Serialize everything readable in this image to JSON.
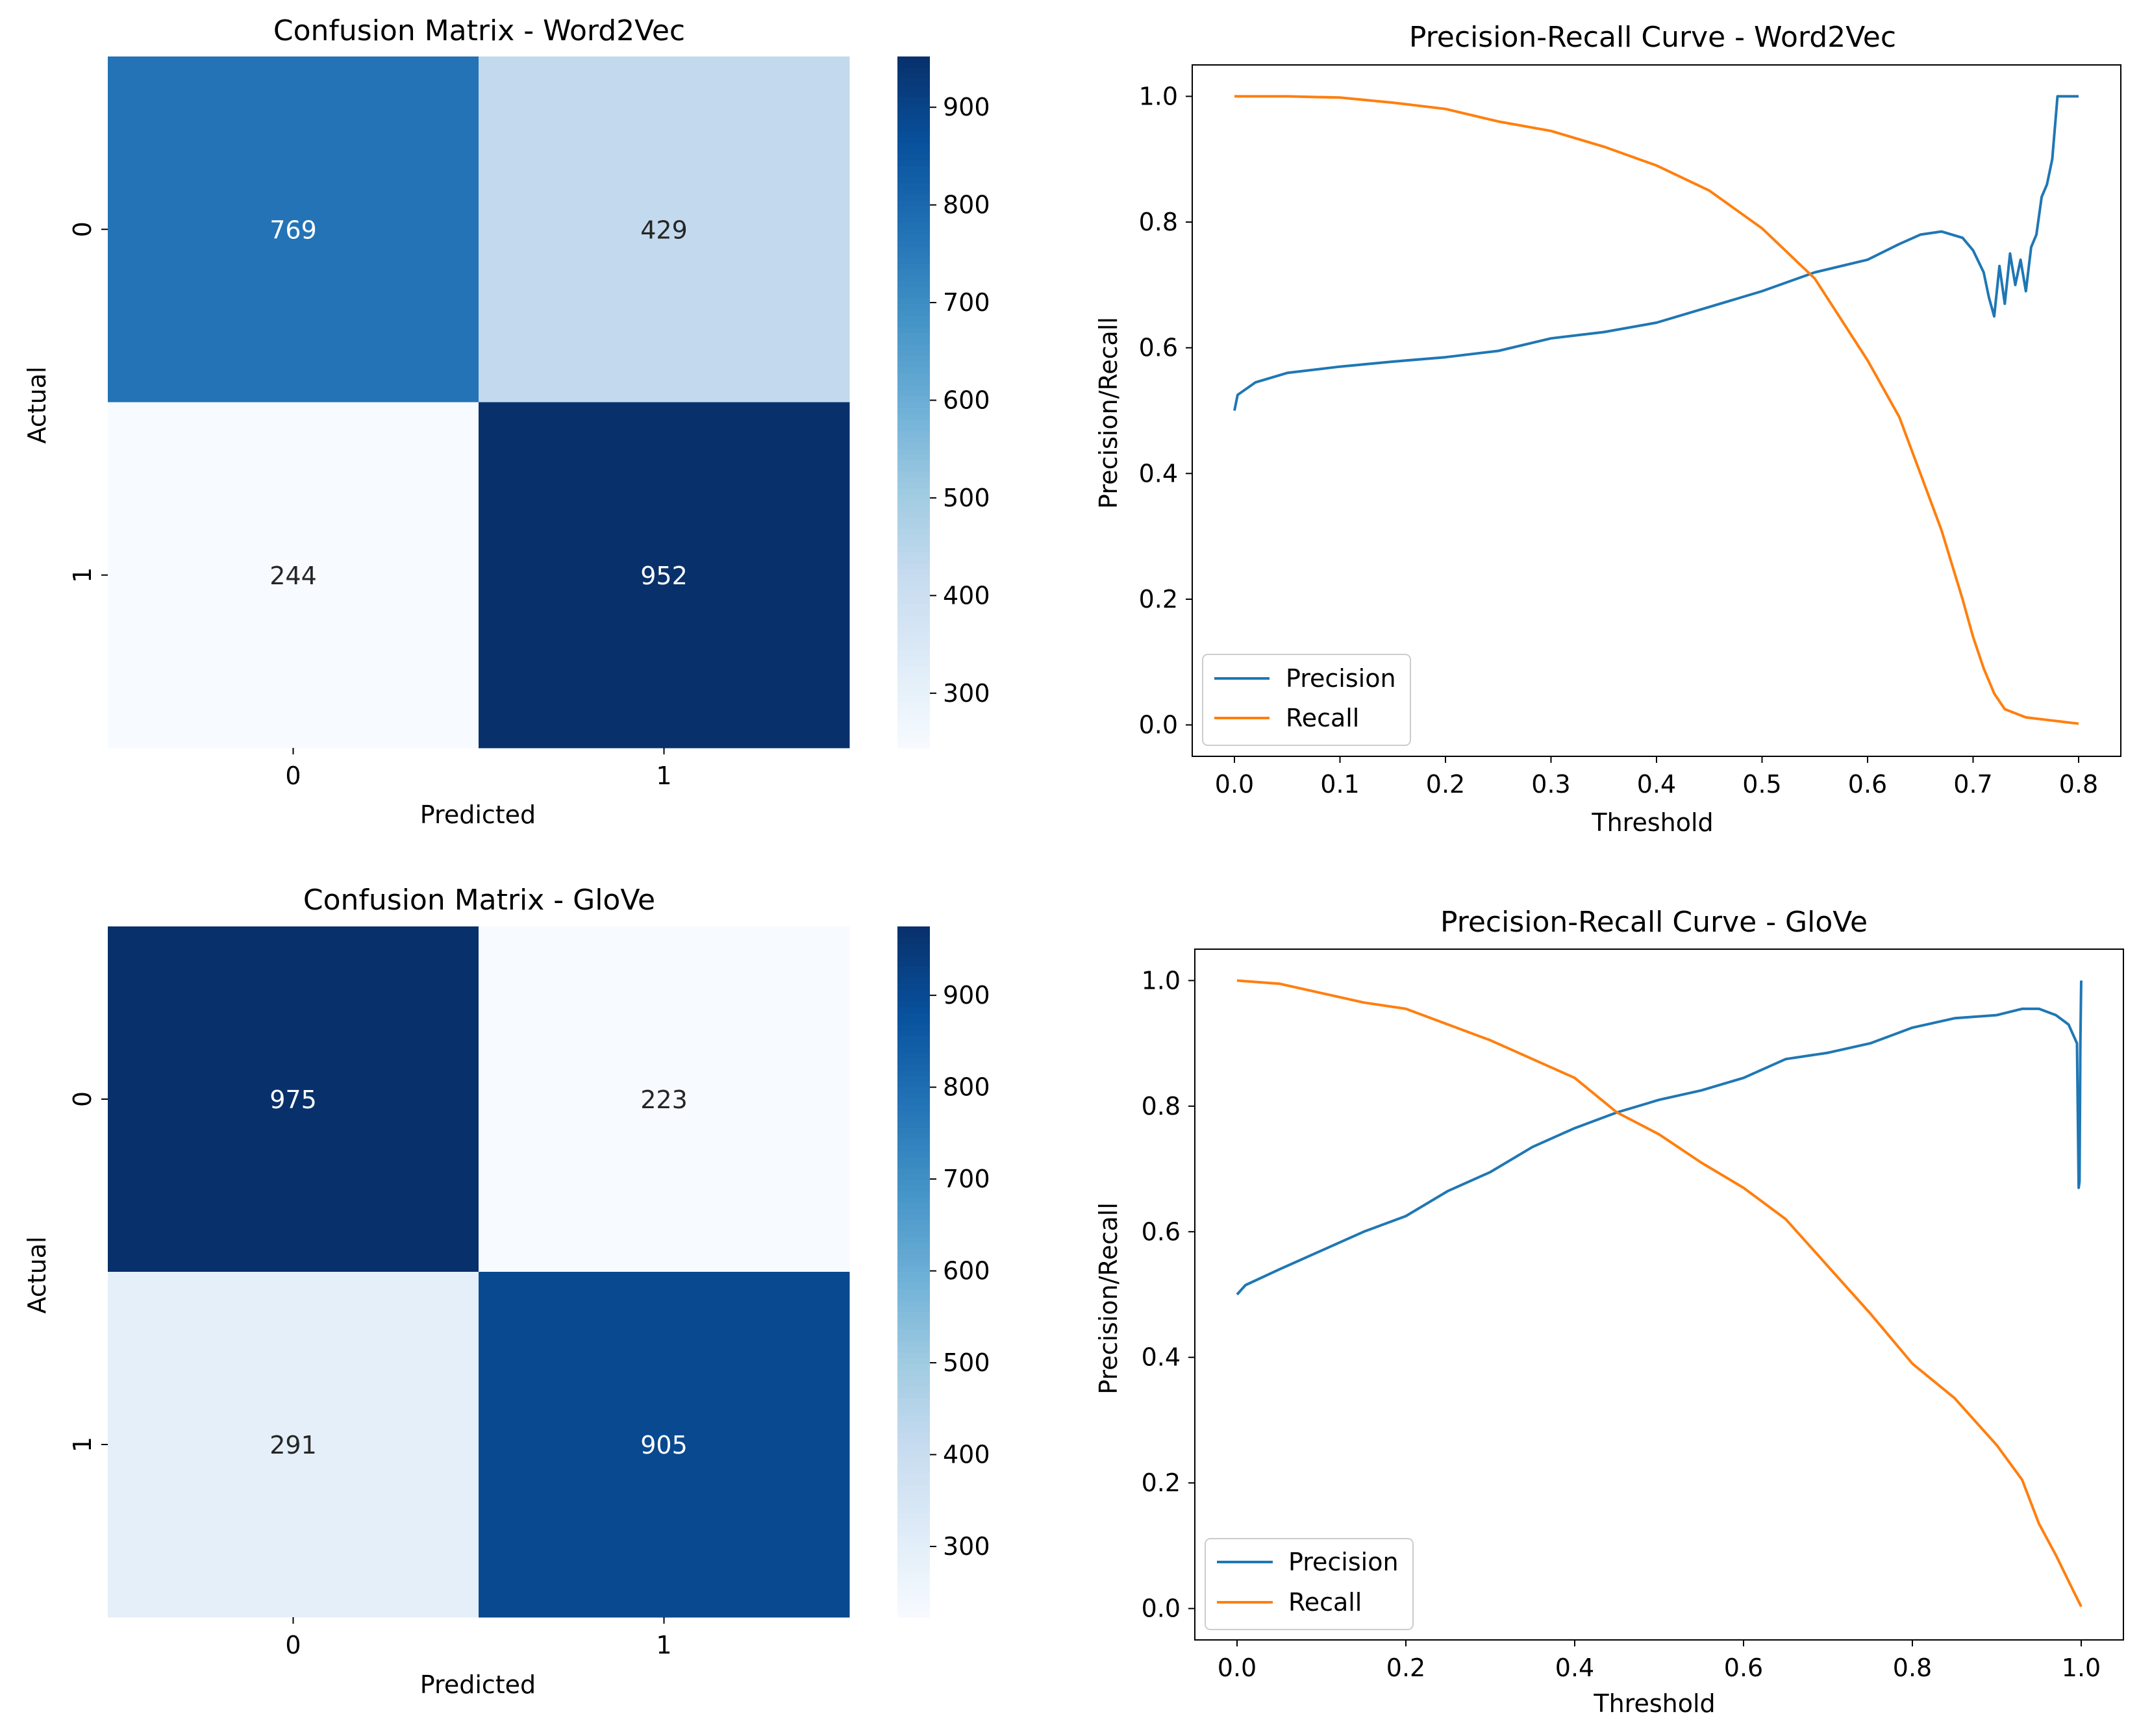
{
  "chart_data": [
    {
      "type": "heatmap",
      "title": "Confusion Matrix - Word2Vec",
      "xlabel": "Predicted",
      "ylabel": "Actual",
      "x_categories": [
        "0",
        "1"
      ],
      "y_categories": [
        "0",
        "1"
      ],
      "cells": [
        [
          769,
          429
        ],
        [
          244,
          952
        ]
      ],
      "colorbar": {
        "ticks": [
          300,
          400,
          500,
          600,
          700,
          800,
          900
        ],
        "vmin": 244,
        "vmax": 952,
        "cmap": "Blues"
      }
    },
    {
      "type": "line",
      "title": "Precision-Recall Curve - Word2Vec",
      "xlabel": "Threshold",
      "ylabel": "Precision/Recall",
      "xlim": [
        -0.04,
        0.84
      ],
      "ylim": [
        -0.05,
        1.05
      ],
      "xticks": [
        0.0,
        0.1,
        0.2,
        0.3,
        0.4,
        0.5,
        0.6,
        0.7,
        0.8
      ],
      "xtick_labels": [
        "0.0",
        "0.1",
        "0.2",
        "0.3",
        "0.4",
        "0.5",
        "0.6",
        "0.7",
        "0.8"
      ],
      "yticks": [
        0.0,
        0.2,
        0.4,
        0.6,
        0.8,
        1.0
      ],
      "ytick_labels": [
        "0.0",
        "0.2",
        "0.4",
        "0.6",
        "0.8",
        "1.0"
      ],
      "legend_position": "lower-left",
      "series": [
        {
          "name": "Precision",
          "color": "#1f77b4",
          "x": [
            0.0,
            0.003,
            0.02,
            0.05,
            0.1,
            0.15,
            0.2,
            0.25,
            0.3,
            0.35,
            0.4,
            0.45,
            0.5,
            0.55,
            0.6,
            0.63,
            0.65,
            0.67,
            0.69,
            0.7,
            0.71,
            0.715,
            0.72,
            0.725,
            0.73,
            0.735,
            0.74,
            0.745,
            0.75,
            0.755,
            0.76,
            0.765,
            0.77,
            0.775,
            0.78,
            0.79,
            0.8
          ],
          "y": [
            0.5,
            0.525,
            0.545,
            0.56,
            0.57,
            0.578,
            0.585,
            0.595,
            0.615,
            0.625,
            0.64,
            0.665,
            0.69,
            0.72,
            0.74,
            0.765,
            0.78,
            0.785,
            0.775,
            0.755,
            0.72,
            0.68,
            0.65,
            0.73,
            0.67,
            0.75,
            0.7,
            0.74,
            0.69,
            0.76,
            0.78,
            0.84,
            0.86,
            0.9,
            1.0,
            1.0,
            1.0
          ]
        },
        {
          "name": "Recall",
          "color": "#ff7f0e",
          "x": [
            0.0,
            0.05,
            0.1,
            0.15,
            0.2,
            0.25,
            0.3,
            0.35,
            0.4,
            0.45,
            0.5,
            0.55,
            0.6,
            0.63,
            0.65,
            0.67,
            0.69,
            0.7,
            0.71,
            0.72,
            0.73,
            0.75,
            0.78,
            0.8
          ],
          "y": [
            1.0,
            1.0,
            0.998,
            0.99,
            0.98,
            0.96,
            0.945,
            0.92,
            0.89,
            0.85,
            0.79,
            0.71,
            0.58,
            0.49,
            0.4,
            0.31,
            0.2,
            0.14,
            0.09,
            0.05,
            0.025,
            0.012,
            0.006,
            0.002
          ]
        }
      ]
    },
    {
      "type": "heatmap",
      "title": "Confusion Matrix - GloVe",
      "xlabel": "Predicted",
      "ylabel": "Actual",
      "x_categories": [
        "0",
        "1"
      ],
      "y_categories": [
        "0",
        "1"
      ],
      "cells": [
        [
          975,
          223
        ],
        [
          291,
          905
        ]
      ],
      "colorbar": {
        "ticks": [
          300,
          400,
          500,
          600,
          700,
          800,
          900
        ],
        "vmin": 223,
        "vmax": 975,
        "cmap": "Blues"
      }
    },
    {
      "type": "line",
      "title": "Precision-Recall Curve - GloVe",
      "xlabel": "Threshold",
      "ylabel": "Precision/Recall",
      "xlim": [
        -0.05,
        1.05
      ],
      "ylim": [
        -0.05,
        1.05
      ],
      "xticks": [
        0.0,
        0.2,
        0.4,
        0.6,
        0.8,
        1.0
      ],
      "xtick_labels": [
        "0.0",
        "0.2",
        "0.4",
        "0.6",
        "0.8",
        "1.0"
      ],
      "yticks": [
        0.0,
        0.2,
        0.4,
        0.6,
        0.8,
        1.0
      ],
      "ytick_labels": [
        "0.0",
        "0.2",
        "0.4",
        "0.6",
        "0.8",
        "1.0"
      ],
      "legend_position": "lower-left",
      "series": [
        {
          "name": "Precision",
          "color": "#1f77b4",
          "x": [
            0.0,
            0.01,
            0.05,
            0.1,
            0.15,
            0.2,
            0.25,
            0.3,
            0.35,
            0.4,
            0.45,
            0.5,
            0.55,
            0.6,
            0.65,
            0.7,
            0.75,
            0.8,
            0.85,
            0.9,
            0.93,
            0.95,
            0.97,
            0.985,
            0.995,
            0.997,
            0.998,
            0.999,
            1.0
          ],
          "y": [
            0.5,
            0.515,
            0.54,
            0.57,
            0.6,
            0.625,
            0.665,
            0.695,
            0.735,
            0.765,
            0.79,
            0.81,
            0.825,
            0.845,
            0.875,
            0.885,
            0.9,
            0.925,
            0.94,
            0.945,
            0.955,
            0.955,
            0.945,
            0.93,
            0.9,
            0.67,
            0.68,
            0.9,
            1.0
          ]
        },
        {
          "name": "Recall",
          "color": "#ff7f0e",
          "x": [
            0.0,
            0.05,
            0.1,
            0.15,
            0.2,
            0.25,
            0.3,
            0.35,
            0.4,
            0.45,
            0.5,
            0.55,
            0.6,
            0.65,
            0.7,
            0.75,
            0.8,
            0.85,
            0.9,
            0.93,
            0.95,
            0.97,
            0.99,
            1.0
          ],
          "y": [
            1.0,
            0.995,
            0.98,
            0.965,
            0.955,
            0.93,
            0.905,
            0.875,
            0.845,
            0.79,
            0.755,
            0.71,
            0.67,
            0.62,
            0.545,
            0.47,
            0.39,
            0.335,
            0.26,
            0.205,
            0.135,
            0.085,
            0.03,
            0.003
          ]
        }
      ]
    }
  ]
}
